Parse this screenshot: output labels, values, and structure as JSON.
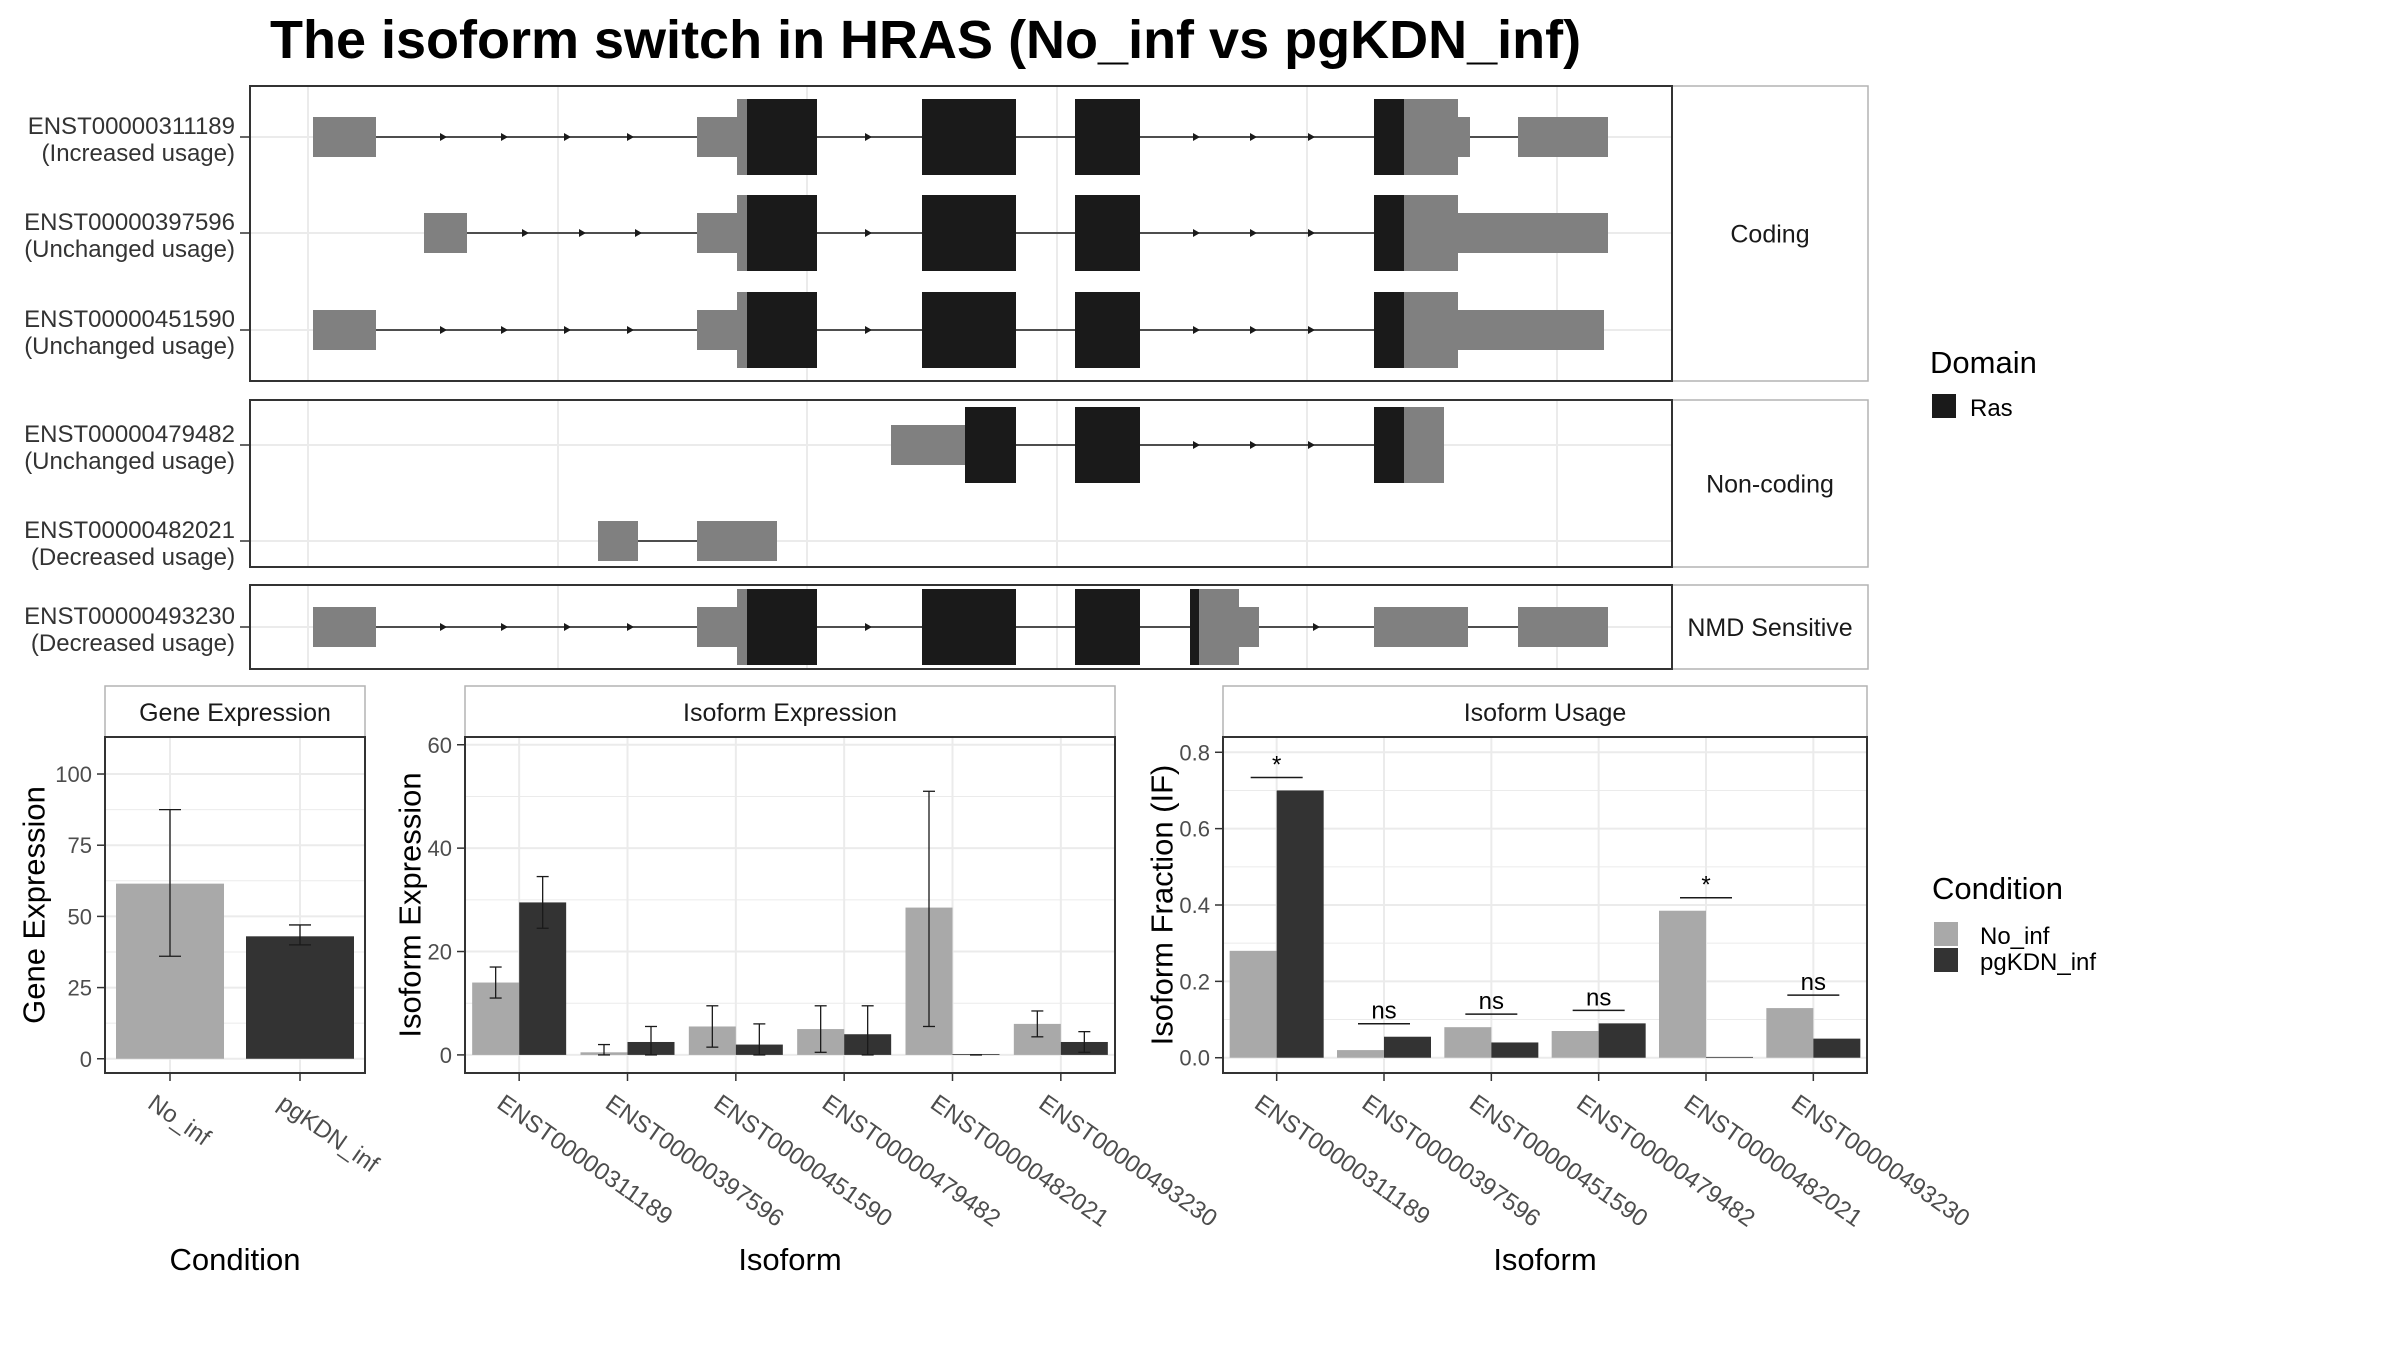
{
  "title": "The isoform switch in HRAS (No_inf vs pgKDN_inf)",
  "colors": {
    "utr": "#808080",
    "domain": "#1a1a1a",
    "no_inf": "#a9a9a9",
    "pgkdn_inf": "#333333",
    "grid": "#ebebeb",
    "border": "#333333",
    "strip_border": "#b3b3b3"
  },
  "structure": {
    "facets": [
      "Coding",
      "Non-coding",
      "NMD Sensitive"
    ],
    "isoforms": [
      {
        "id": "ENST00000311189",
        "usage": "(Increased usage)",
        "facet": 0
      },
      {
        "id": "ENST00000397596",
        "usage": "(Unchanged usage)",
        "facet": 0
      },
      {
        "id": "ENST00000451590",
        "usage": "(Unchanged usage)",
        "facet": 0
      },
      {
        "id": "ENST00000479482",
        "usage": "(Unchanged usage)",
        "facet": 1
      },
      {
        "id": "ENST00000482021",
        "usage": "(Decreased usage)",
        "facet": 1
      },
      {
        "id": "ENST00000493230",
        "usage": "(Decreased usage)",
        "facet": 2
      }
    ]
  },
  "legends": {
    "domain_title": "Domain",
    "domain_items": [
      "Ras"
    ],
    "condition_title": "Condition",
    "condition_items": [
      "No_inf",
      "pgKDN_inf"
    ]
  },
  "chart_data": [
    {
      "type": "bar",
      "title": "Gene Expression",
      "xlabel": "Condition",
      "ylabel": "Gene Expression",
      "categories": [
        "No_inf",
        "pgKDN_inf"
      ],
      "values": [
        61.5,
        43
      ],
      "error_low": [
        36,
        40
      ],
      "error_high": [
        87.5,
        47
      ],
      "ylim": [
        -5,
        113
      ],
      "yticks": [
        0,
        25,
        50,
        75,
        100
      ]
    },
    {
      "type": "bar",
      "title": "Isoform Expression",
      "xlabel": "Isoform",
      "ylabel": "Isoform Expression",
      "categories": [
        "ENST00000311189",
        "ENST00000397596",
        "ENST00000451590",
        "ENST00000479482",
        "ENST00000482021",
        "ENST00000493230"
      ],
      "series": [
        {
          "name": "No_inf",
          "values": [
            14,
            0.5,
            5.5,
            5,
            28.5,
            6
          ],
          "error_low": [
            11,
            0,
            1.5,
            0.5,
            5.5,
            3.5
          ],
          "error_high": [
            17,
            2,
            9.5,
            9.5,
            51,
            8.5
          ]
        },
        {
          "name": "pgKDN_inf",
          "values": [
            29.5,
            2.5,
            2,
            4,
            0,
            2.5
          ],
          "error_low": [
            24.5,
            0,
            0,
            0,
            0,
            0.5
          ],
          "error_high": [
            34.5,
            5.5,
            6,
            9.5,
            0,
            4.5
          ]
        }
      ],
      "ylim": [
        -3.5,
        61.5
      ],
      "yticks": [
        0,
        20,
        40,
        60
      ]
    },
    {
      "type": "bar",
      "title": "Isoform Usage",
      "xlabel": "Isoform",
      "ylabel": "Isoform Fraction (IF)",
      "categories": [
        "ENST00000311189",
        "ENST00000397596",
        "ENST00000451590",
        "ENST00000479482",
        "ENST00000482021",
        "ENST00000493230"
      ],
      "series": [
        {
          "name": "No_inf",
          "values": [
            0.28,
            0.02,
            0.08,
            0.07,
            0.385,
            0.13
          ]
        },
        {
          "name": "pgKDN_inf",
          "values": [
            0.7,
            0.055,
            0.04,
            0.09,
            0,
            0.05
          ]
        }
      ],
      "significance": [
        "*",
        "ns",
        "ns",
        "ns",
        "*",
        "ns"
      ],
      "ylim": [
        -0.04,
        0.84
      ],
      "yticks": [
        0.0,
        0.2,
        0.4,
        0.6,
        0.8
      ]
    }
  ]
}
